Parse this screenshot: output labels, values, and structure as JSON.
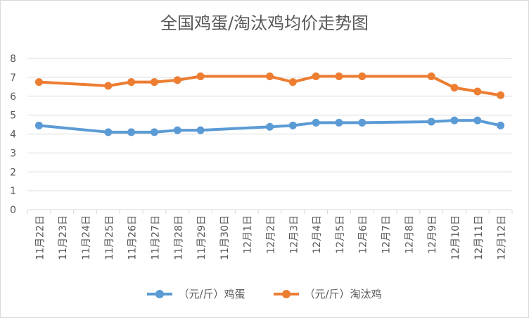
{
  "chart_data": {
    "type": "line",
    "title": "全国鸡蛋/淘汰鸡均价走势图",
    "categories": [
      "11月22日",
      "11月23日",
      "11月24日",
      "11月25日",
      "11月26日",
      "11月27日",
      "11月28日",
      "11月29日",
      "11月30日",
      "12月1日",
      "12月2日",
      "12月3日",
      "12月4日",
      "12月5日",
      "12月6日",
      "12月7日",
      "12月8日",
      "12月9日",
      "12月10日",
      "12月11日",
      "12月12日"
    ],
    "series": [
      {
        "name": "（元/斤）鸡蛋",
        "color": "#5B9BD5",
        "values": [
          4.45,
          null,
          null,
          4.1,
          4.1,
          4.1,
          4.2,
          4.2,
          null,
          null,
          4.38,
          4.45,
          4.6,
          4.6,
          4.6,
          null,
          null,
          4.65,
          4.72,
          4.72,
          4.45
        ]
      },
      {
        "name": "（元/斤）淘汰鸡",
        "color": "#ED7D31",
        "values": [
          6.75,
          null,
          null,
          6.55,
          6.75,
          6.75,
          6.85,
          7.05,
          null,
          null,
          7.05,
          6.75,
          7.05,
          7.05,
          7.05,
          null,
          null,
          7.05,
          6.45,
          6.25,
          6.05
        ]
      }
    ],
    "ylim": [
      0,
      8
    ],
    "yticks": [
      0,
      1,
      2,
      3,
      4,
      5,
      6,
      7,
      8
    ],
    "grid": true,
    "legend_position": "bottom"
  }
}
